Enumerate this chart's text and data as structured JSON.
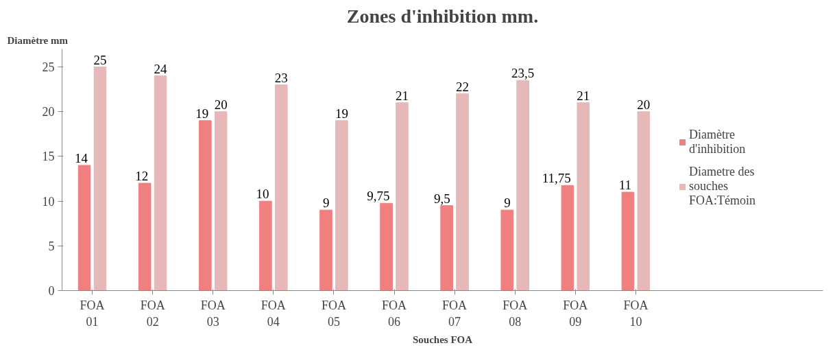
{
  "chart_data": {
    "type": "bar",
    "title": "Zones d'inhibition mm.",
    "xlabel": "Souches FOA",
    "ylabel": "Diamètre mm",
    "categories": [
      "FOA 01",
      "FOA 02",
      "FOA 03",
      "FOA 04",
      "FOA 05",
      "FOA 06",
      "FOA 07",
      "FOA 08",
      "FOA 09",
      "FOA 10"
    ],
    "series": [
      {
        "name": "Diamètre d'inhibition",
        "color": "#f07f7f",
        "values": [
          14,
          12,
          19,
          10,
          9,
          9.75,
          9.5,
          9,
          11.75,
          11
        ],
        "value_labels": [
          "14",
          "12",
          "19",
          "10",
          "9",
          "9,75",
          "9,5",
          "9",
          "11,75",
          "11"
        ]
      },
      {
        "name": "Diametre des souches FOA:Témoin",
        "color": "#e6b9b8",
        "values": [
          25,
          24,
          20,
          23,
          19,
          21,
          22,
          23.5,
          21,
          20
        ],
        "value_labels": [
          "25",
          "24",
          "20",
          "23",
          "19",
          "21",
          "22",
          "23,5",
          "21",
          "20"
        ]
      }
    ],
    "ylim": [
      0,
      27
    ],
    "yticks": [
      0,
      5,
      10,
      15,
      20,
      25
    ],
    "grid": false,
    "legend": "right"
  }
}
